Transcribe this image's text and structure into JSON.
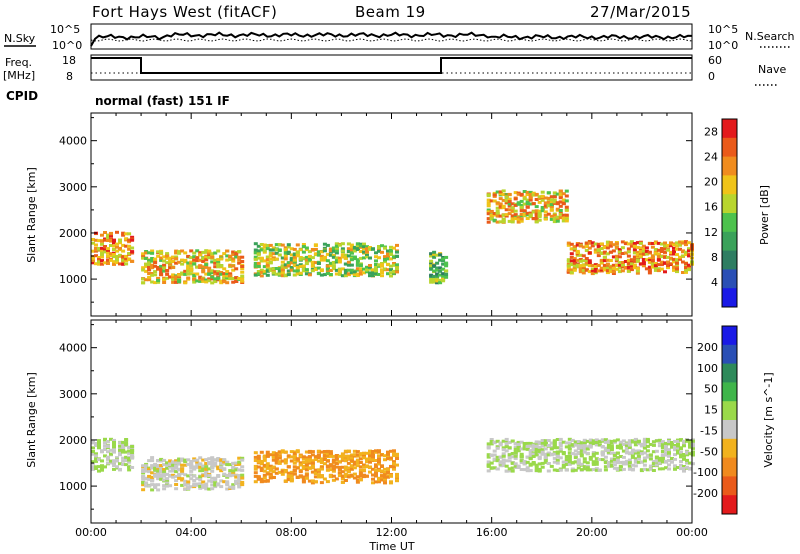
{
  "header": {
    "station": "Fort Hays West (fitACF)",
    "beam": "Beam 19",
    "date": "27/Mar/2015"
  },
  "top_panel": {
    "left_label": "N.Sky",
    "right_label": "N.Search",
    "left_ticks": [
      "10^5",
      "10^0"
    ],
    "right_ticks": [
      "10^5",
      "10^0"
    ]
  },
  "freq_panel": {
    "left_label_1": "Freq.",
    "left_label_2": "[MHz]",
    "right_label": "Nave",
    "left_ticks": [
      "18",
      "8"
    ],
    "right_ticks": [
      "60",
      "0"
    ]
  },
  "cpid": {
    "label": "CPID",
    "mode": "normal (fast) 151 IF"
  },
  "colors": {
    "power_scale": [
      "#1a1ae6",
      "#2a4fb5",
      "#2e7d62",
      "#3aa25a",
      "#4dc24d",
      "#b8d52e",
      "#f0c419",
      "#f08c1e",
      "#ea5a1a",
      "#e31a1c"
    ],
    "velocity_scale": [
      "#1a1ae6",
      "#2a4fb5",
      "#2e8a5a",
      "#3fb54a",
      "#9ad94a",
      "#c8c8c8",
      "#f2b21e",
      "#f08a1e",
      "#ea5a1a",
      "#e31a1c"
    ]
  },
  "chart_data": [
    {
      "type": "heatmap",
      "title": "Power",
      "ylabel": "Slant Range [km]",
      "xlabel": "Time UT",
      "x_ticks": [
        "00:00",
        "04:00",
        "08:00",
        "12:00",
        "16:00",
        "20:00",
        "00:00"
      ],
      "y_ticks": [
        1000,
        2000,
        3000,
        4000
      ],
      "ylim": [
        200,
        4600
      ],
      "colorbar": {
        "label": "Power [dB]",
        "ticks": [
          4,
          8,
          12,
          16,
          20,
          24,
          28
        ]
      },
      "features": [
        {
          "time_range_h": [
            0.0,
            1.6
          ],
          "range_km": 1700,
          "value": 22
        },
        {
          "time_range_h": [
            2.0,
            6.0
          ],
          "range_km": 1300,
          "value": 20
        },
        {
          "time_range_h": [
            6.5,
            12.2
          ],
          "range_km": 1450,
          "value": 16
        },
        {
          "time_range_h": [
            13.5,
            14.2
          ],
          "range_km": 1300,
          "value": 14
        },
        {
          "time_range_h": [
            15.8,
            19.0
          ],
          "range_km": 2600,
          "value": 20
        },
        {
          "time_range_h": [
            19.0,
            24.0
          ],
          "range_km": 1500,
          "value": 22
        }
      ]
    },
    {
      "type": "heatmap",
      "title": "Velocity",
      "ylabel": "Slant Range [km]",
      "xlabel": "Time UT",
      "x_ticks": [
        "00:00",
        "04:00",
        "08:00",
        "12:00",
        "16:00",
        "20:00",
        "00:00"
      ],
      "y_ticks": [
        1000,
        2000,
        3000,
        4000
      ],
      "ylim": [
        200,
        4600
      ],
      "colorbar": {
        "label": "Velocity [m s^-1]",
        "ticks": [
          200,
          100,
          50,
          15,
          -15,
          -50,
          -100,
          -200
        ]
      },
      "features": [
        {
          "time_range_h": [
            0.0,
            1.6
          ],
          "range_km": 1700,
          "value": 0
        },
        {
          "time_range_h": [
            2.0,
            6.0
          ],
          "range_km": 1300,
          "value": -20
        },
        {
          "time_range_h": [
            6.5,
            12.2
          ],
          "range_km": 1450,
          "value": -80
        },
        {
          "time_range_h": [
            15.8,
            24.0
          ],
          "range_km": 1700,
          "value": 0
        }
      ]
    }
  ]
}
